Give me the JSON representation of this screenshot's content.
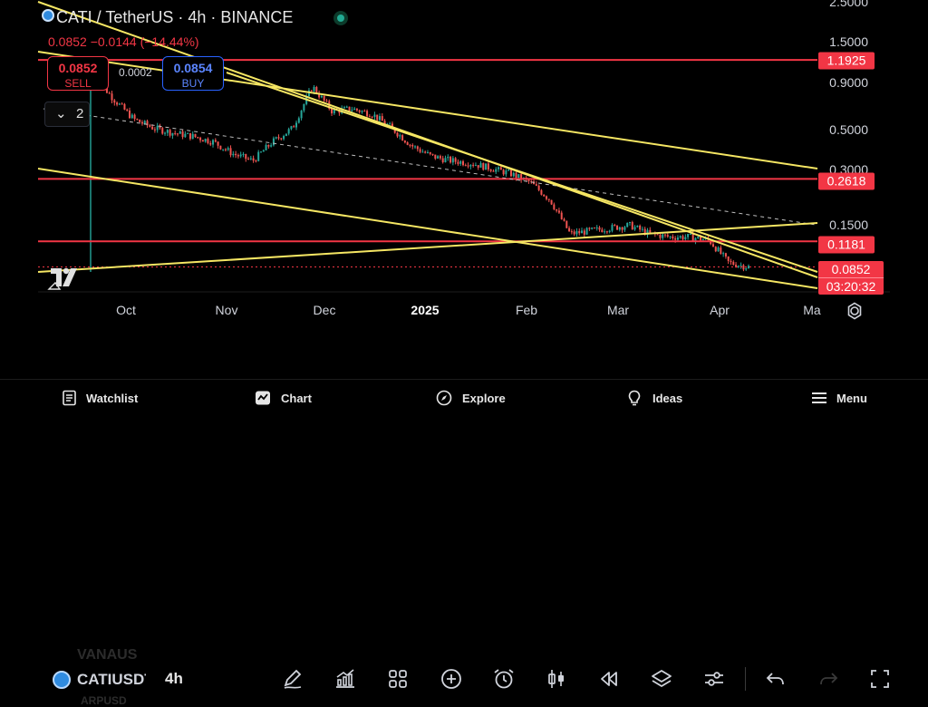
{
  "header": {
    "title": "CATI / TetherUS · 4h · BINANCE",
    "quote": "0.0852  −0.0144 (−14.44%)"
  },
  "trade": {
    "sell_price": "0.0852",
    "sell_label": "SELL",
    "spread": "0.0002",
    "buy_price": "0.0854",
    "buy_label": "BUY"
  },
  "indicators_count": "2",
  "price_axis": {
    "ticks": [
      "2.5000",
      "1.5000",
      "0.9000",
      "0.5000",
      "0.3000",
      "0.1500"
    ],
    "tags": [
      "1.1925",
      "0.2618",
      "0.1181"
    ],
    "last_price": "0.0852",
    "countdown": "03:20:32"
  },
  "time_axis": [
    "Oct",
    "Nov",
    "Dec",
    "2025",
    "Feb",
    "Mar",
    "Apr",
    "Ma"
  ],
  "chart_data": {
    "type": "candlestick",
    "scale": "log",
    "price_range": [
      0.065,
      2.7
    ],
    "horizontal_levels": [
      1.1925,
      0.2618,
      0.1181
    ],
    "last_price": 0.0852,
    "approx_closes": [
      0.97,
      0.72,
      0.56,
      0.5,
      0.47,
      0.45,
      0.42,
      0.36,
      0.33,
      0.42,
      0.5,
      0.85,
      0.62,
      0.64,
      0.6,
      0.5,
      0.4,
      0.35,
      0.33,
      0.32,
      0.3,
      0.28,
      0.25,
      0.2,
      0.13,
      0.135,
      0.14,
      0.145,
      0.13,
      0.125,
      0.125,
      0.12,
      0.09,
      0.0852
    ],
    "colors": {
      "up": "#26a69a",
      "down": "#ef5350",
      "trendline": "#f5e663",
      "level": "#f23645"
    }
  },
  "toolbar": {
    "symbol": "CATIUSDT",
    "interval": "4h",
    "ghost_above": "VANAUS",
    "ghost_below": "ARPUSD"
  },
  "nav": {
    "watchlist": "Watchlist",
    "chart": "Chart",
    "explore": "Explore",
    "ideas": "Ideas",
    "menu": "Menu"
  }
}
